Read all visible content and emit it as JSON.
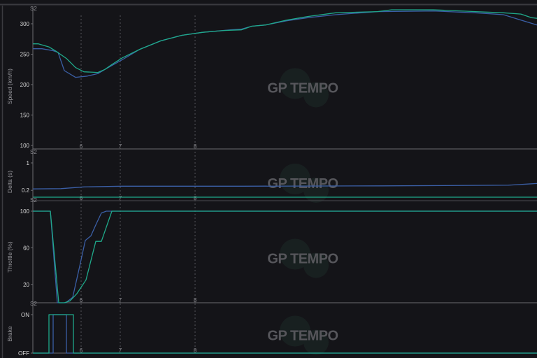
{
  "logo_text": "GP TEMPO",
  "sector_label": "S2",
  "corner_markers": [
    "6",
    "7",
    "8"
  ],
  "colors": {
    "background": "#141418",
    "series_a": "#1fa98a",
    "series_b": "#3b5fa6",
    "axis": "#6b6b70",
    "text": "#d8d8d8"
  },
  "chart_data": [
    {
      "type": "line",
      "ylabel": "Speed (km/h)",
      "ylim": [
        100,
        300
      ],
      "yticks": [
        "100",
        "150",
        "200",
        "250",
        "300"
      ],
      "grid": false,
      "series": [
        {
          "color": "#1fa98a",
          "points": [
            [
              0,
              267
            ],
            [
              8,
              267
            ],
            [
              23,
              262
            ],
            [
              33,
              255
            ],
            [
              48,
              243
            ],
            [
              61,
              228
            ],
            [
              73,
              221
            ],
            [
              93,
              220
            ],
            [
              103,
              225
            ],
            [
              113,
              233
            ],
            [
              128,
              244
            ],
            [
              153,
              258
            ],
            [
              183,
              272
            ],
            [
              213,
              281
            ],
            [
              243,
              286
            ],
            [
              273,
              289
            ],
            [
              298,
              290
            ],
            [
              313,
              296
            ],
            [
              333,
              298
            ],
            [
              363,
              306
            ],
            [
              393,
              312
            ],
            [
              433,
              318
            ],
            [
              493,
              320
            ],
            [
              513,
              323
            ],
            [
              573,
              323
            ],
            [
              633,
              320
            ],
            [
              673,
              318
            ],
            [
              698,
              316
            ],
            [
              713,
              310
            ],
            [
              721,
              309
            ]
          ]
        },
        {
          "color": "#3b5fa6",
          "points": [
            [
              0,
              259
            ],
            [
              13,
              259
            ],
            [
              28,
              256
            ],
            [
              36,
              253
            ],
            [
              45,
              223
            ],
            [
              61,
              212
            ],
            [
              78,
              214
            ],
            [
              93,
              218
            ],
            [
              103,
              225
            ],
            [
              128,
              241
            ],
            [
              153,
              258
            ],
            [
              183,
              272
            ],
            [
              213,
              281
            ],
            [
              243,
              286
            ],
            [
              283,
              290
            ],
            [
              298,
              291
            ],
            [
              313,
              296
            ],
            [
              333,
              298
            ],
            [
              363,
              305
            ],
            [
              393,
              310
            ],
            [
              433,
              315
            ],
            [
              493,
              320
            ],
            [
              573,
              321
            ],
            [
              633,
              318
            ],
            [
              673,
              315
            ],
            [
              698,
              306
            ],
            [
              721,
              298
            ]
          ]
        }
      ]
    },
    {
      "type": "line",
      "ylabel": "Delta (s)",
      "ylim": [
        0,
        1
      ],
      "yticks": [
        "0.2",
        "1"
      ],
      "grid": false,
      "series": [
        {
          "color": "#1fa98a",
          "points": [
            [
              0,
              0
            ],
            [
              721,
              0
            ]
          ]
        },
        {
          "color": "#3b5fa6",
          "points": [
            [
              0,
              0.24
            ],
            [
              40,
              0.25
            ],
            [
              73,
              0.3
            ],
            [
              128,
              0.32
            ],
            [
              300,
              0.32
            ],
            [
              500,
              0.33
            ],
            [
              680,
              0.35
            ],
            [
              721,
              0.4
            ]
          ]
        }
      ]
    },
    {
      "type": "line",
      "ylabel": "Throttle (%)",
      "ylim": [
        0,
        100
      ],
      "yticks": [
        "20",
        "60",
        "100"
      ],
      "grid": false,
      "series": [
        {
          "color": "#1fa98a",
          "points": [
            [
              0,
              100
            ],
            [
              25,
              100
            ],
            [
              37,
              0
            ],
            [
              45,
              0
            ],
            [
              53,
              2
            ],
            [
              63,
              10
            ],
            [
              76,
              25
            ],
            [
              90,
              67
            ],
            [
              98,
              67
            ],
            [
              113,
              100
            ],
            [
              721,
              100
            ]
          ]
        },
        {
          "color": "#3b5fa6",
          "points": [
            [
              0,
              100
            ],
            [
              25,
              100
            ],
            [
              35,
              0
            ],
            [
              47,
              0
            ],
            [
              57,
              6
            ],
            [
              67,
              40
            ],
            [
              75,
              68
            ],
            [
              83,
              73
            ],
            [
              90,
              85
            ],
            [
              98,
              98
            ],
            [
              105,
              100
            ],
            [
              721,
              100
            ]
          ]
        }
      ]
    },
    {
      "type": "line",
      "ylabel": "Brake",
      "ylim": [
        0,
        1
      ],
      "yticks": [
        "OFF",
        "ON"
      ],
      "grid": false,
      "series": [
        {
          "color": "#1fa98a",
          "points": [
            [
              0,
              0
            ],
            [
              23,
              0
            ],
            [
              23,
              1
            ],
            [
              58,
              1
            ],
            [
              58,
              0
            ],
            [
              721,
              0
            ]
          ]
        },
        {
          "color": "#3b5fa6",
          "points": [
            [
              0,
              0
            ],
            [
              29,
              0
            ],
            [
              29,
              1
            ],
            [
              48,
              1
            ],
            [
              48,
              0
            ],
            [
              721,
              0
            ]
          ]
        }
      ]
    }
  ]
}
